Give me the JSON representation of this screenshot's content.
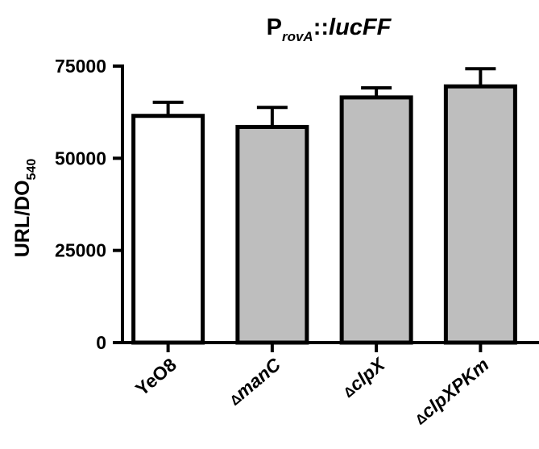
{
  "chart_data": {
    "type": "bar",
    "title": {
      "main": "P",
      "subscript": "rovA",
      "separator": "::",
      "gene": "lucFF"
    },
    "ylabel": {
      "main": "URL/DO",
      "subscript": "540"
    },
    "xlabel": "",
    "ylim": [
      0,
      75000
    ],
    "yticks": [
      "0",
      "25000",
      "50000",
      "75000"
    ],
    "ytick_values": [
      0,
      25000,
      50000,
      75000
    ],
    "categories": [
      {
        "prefix": "",
        "name": "YeO8"
      },
      {
        "prefix": "Δ",
        "name": "manC"
      },
      {
        "prefix": "Δ",
        "name": "clpX"
      },
      {
        "prefix": "Δ",
        "name": "clpXPKm"
      }
    ],
    "values": [
      61500,
      58500,
      66500,
      69500
    ],
    "error_upper": [
      65200,
      63800,
      69100,
      74300
    ],
    "bar_colors": [
      "#ffffff",
      "#bebebe",
      "#bebebe",
      "#bebebe"
    ],
    "stroke_color": "#000000",
    "grid": false,
    "legend": "none"
  }
}
